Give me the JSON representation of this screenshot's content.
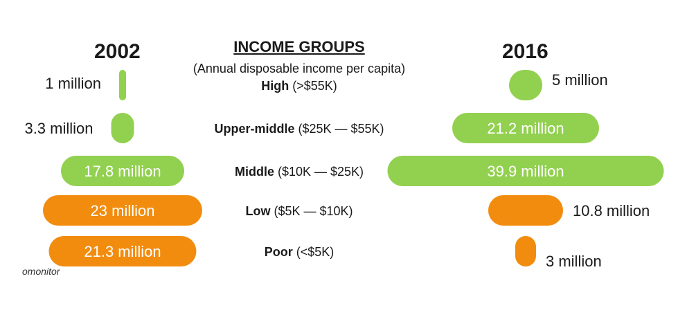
{
  "chart_data": {
    "type": "bar",
    "title": "INCOME GROUPS",
    "subtitle": "(Annual disposable income per capita)",
    "categories": [
      {
        "name": "High",
        "range": "(>$55K)"
      },
      {
        "name": "Upper-middle",
        "range": "($25K — $55K)"
      },
      {
        "name": "Middle",
        "range": "($10K — $25K)"
      },
      {
        "name": "Low",
        "range": "($5K — $10K)"
      },
      {
        "name": "Poor",
        "range": "(<$5K)"
      }
    ],
    "series": [
      {
        "name": "2002",
        "values": [
          1,
          3.3,
          17.8,
          23,
          21.3
        ],
        "labels": [
          "1 million",
          "3.3 million",
          "17.8 million",
          "23 million",
          "21.3 million"
        ]
      },
      {
        "name": "2016",
        "values": [
          5,
          21.2,
          39.9,
          10.8,
          3
        ],
        "labels": [
          "5 million",
          "21.2 million",
          "39.9 million",
          "10.8 million",
          "3 million"
        ]
      }
    ],
    "unit": "million",
    "colors": {
      "upper_groups": "#92d050",
      "lower_groups": "#f28c0f"
    }
  },
  "source_text": "omonitor"
}
